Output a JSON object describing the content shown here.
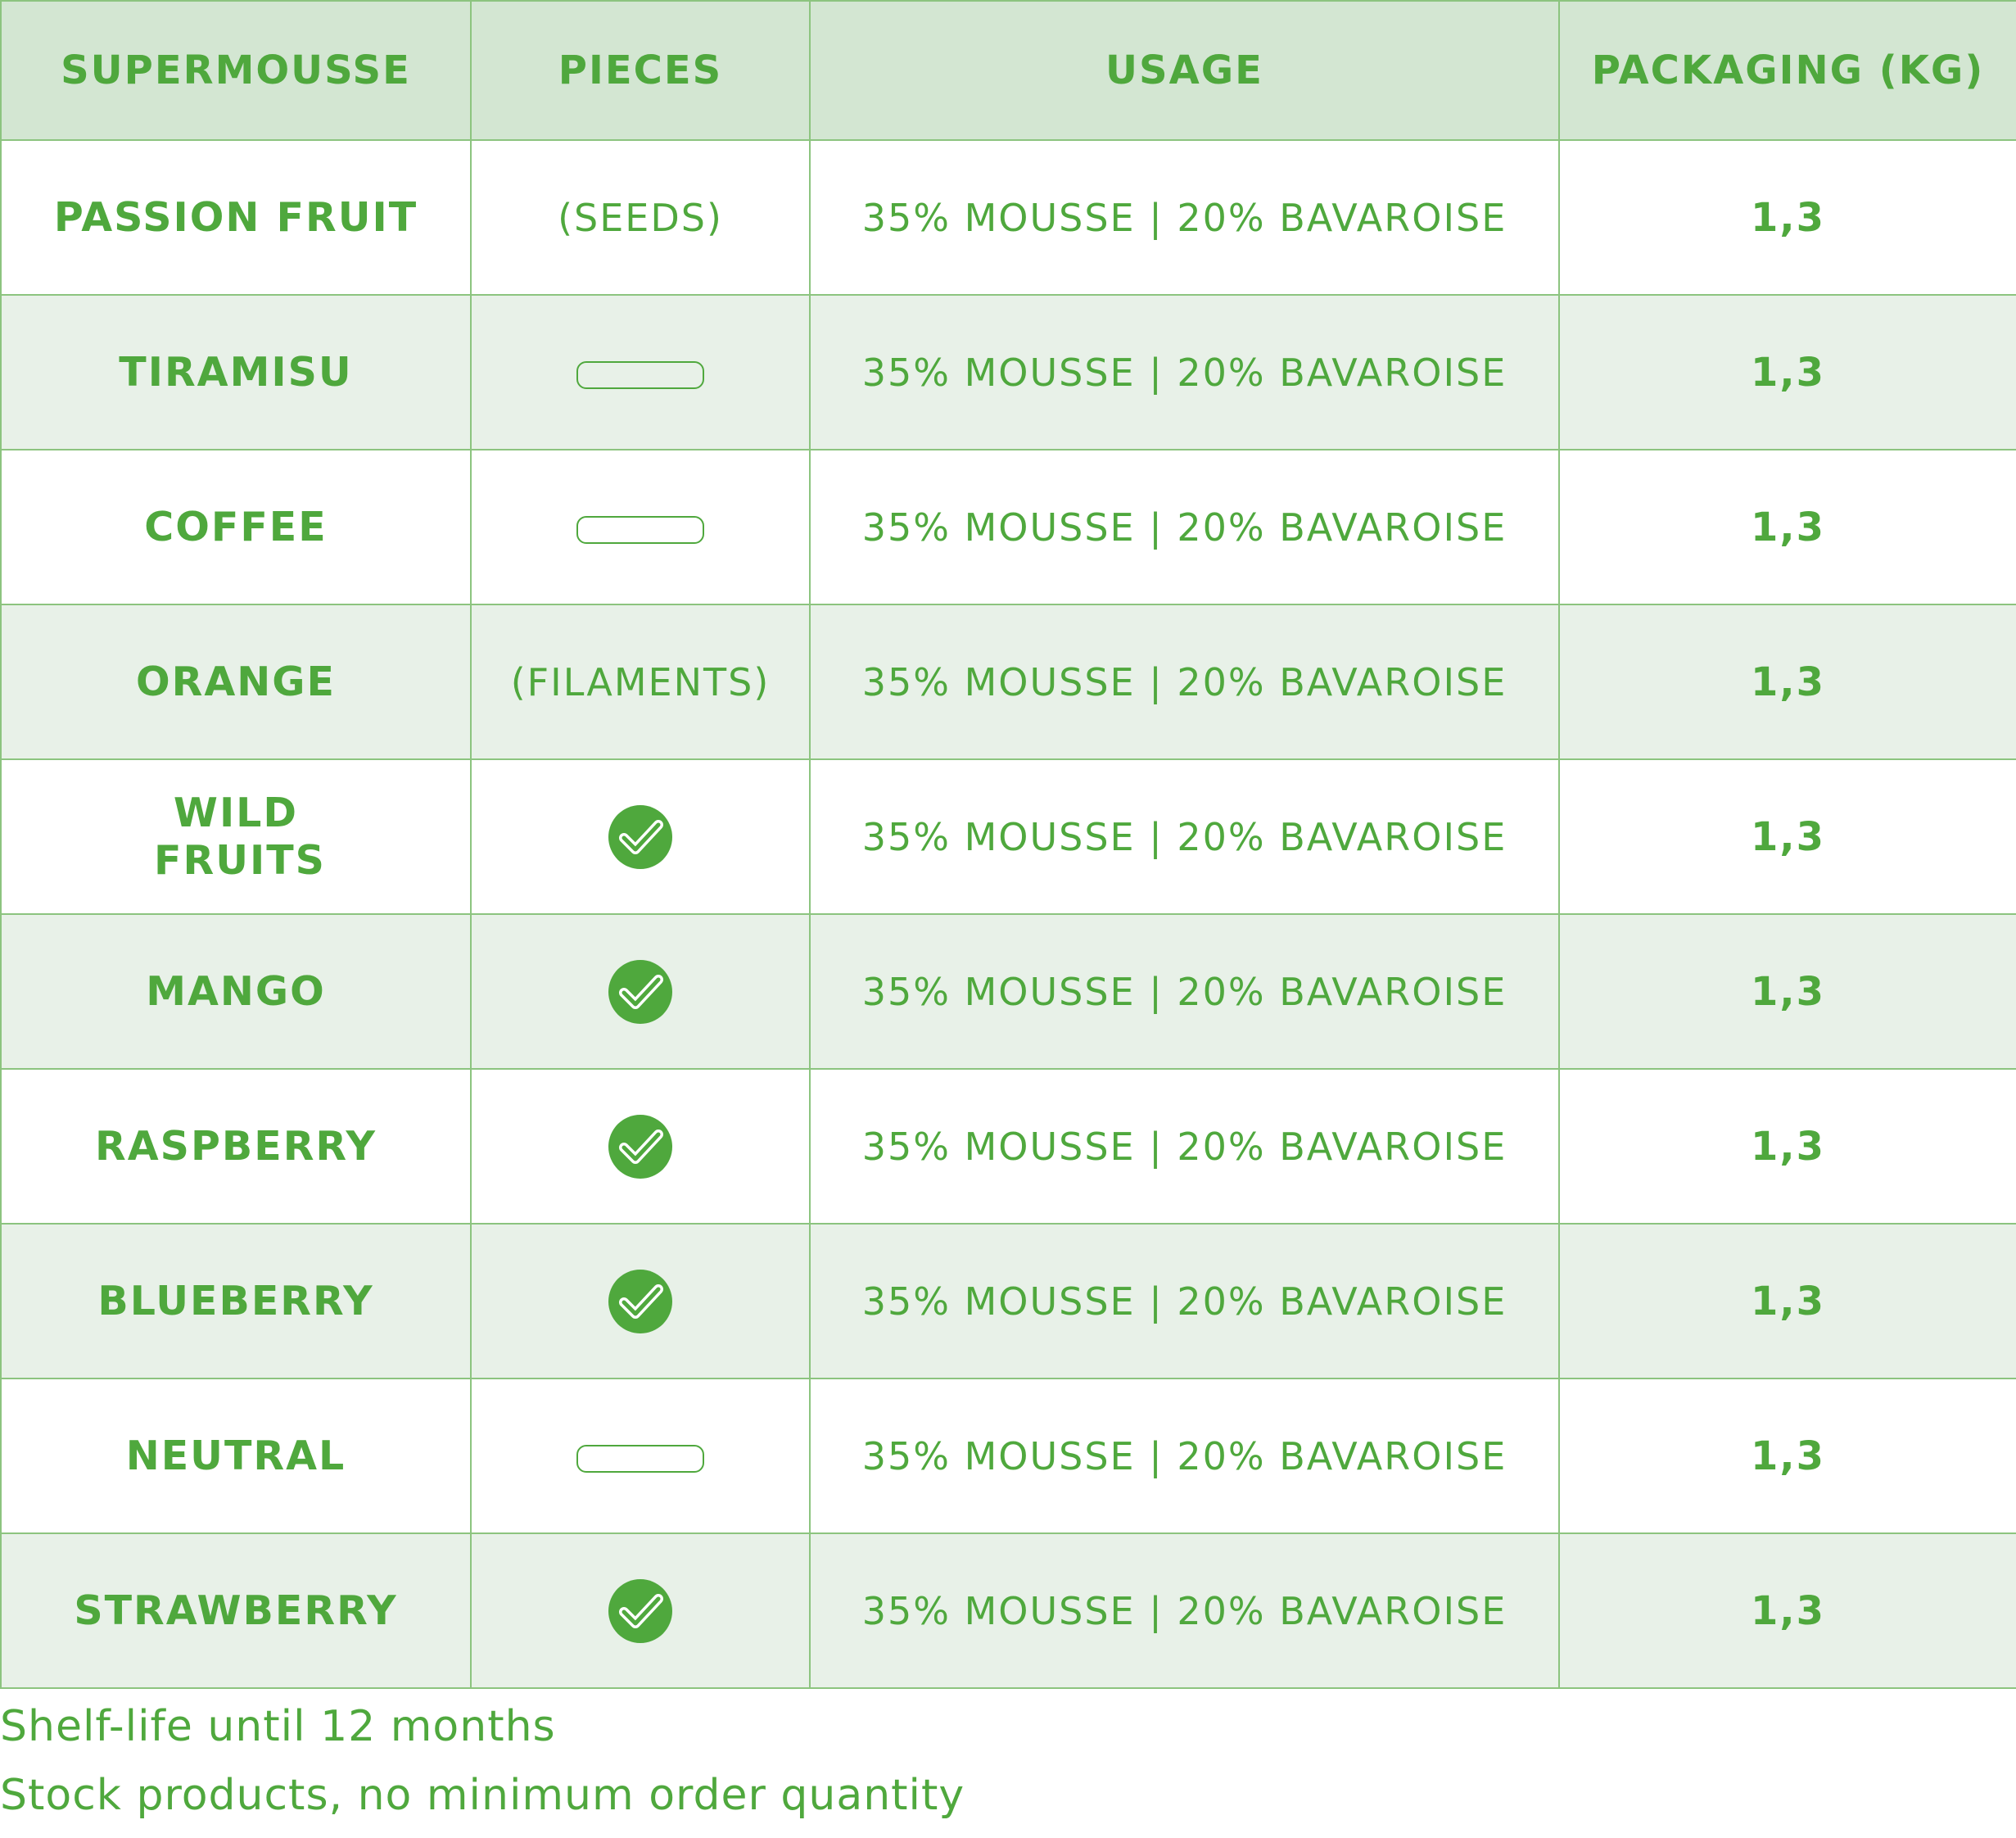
{
  "table": {
    "headers": {
      "name": "SUPERMOUSSE",
      "pieces": "PIECES",
      "usage": "USAGE",
      "packaging": "PACKAGING (KG)"
    },
    "rows": [
      {
        "name": "PASSION FRUIT",
        "pieces_type": "text",
        "pieces": "(SEEDS)",
        "usage": "35% MOUSSE | 20% BAVAROISE",
        "packaging": "1,3"
      },
      {
        "name": "TIRAMISU",
        "pieces_type": "empty",
        "pieces": "",
        "usage": "35% MOUSSE | 20% BAVAROISE",
        "packaging": "1,3"
      },
      {
        "name": "COFFEE",
        "pieces_type": "empty",
        "pieces": "",
        "usage": "35% MOUSSE | 20% BAVAROISE",
        "packaging": "1,3"
      },
      {
        "name": "ORANGE",
        "pieces_type": "text",
        "pieces": "(FILAMENTS)",
        "usage": "35% MOUSSE | 20% BAVAROISE",
        "packaging": "1,3"
      },
      {
        "name": "WILD FRUITS",
        "pieces_type": "check",
        "pieces": "",
        "usage": "35% MOUSSE | 20% BAVAROISE",
        "packaging": "1,3"
      },
      {
        "name": "MANGO",
        "pieces_type": "check",
        "pieces": "",
        "usage": "35% MOUSSE | 20% BAVAROISE",
        "packaging": "1,3"
      },
      {
        "name": "RASPBERRY",
        "pieces_type": "check",
        "pieces": "",
        "usage": "35% MOUSSE | 20% BAVAROISE",
        "packaging": "1,3"
      },
      {
        "name": "BLUEBERRY",
        "pieces_type": "check",
        "pieces": "",
        "usage": "35% MOUSSE | 20% BAVAROISE",
        "packaging": "1,3"
      },
      {
        "name": "NEUTRAL",
        "pieces_type": "empty",
        "pieces": "",
        "usage": "35% MOUSSE | 20% BAVAROISE",
        "packaging": "1,3"
      },
      {
        "name": "STRAWBERRY",
        "pieces_type": "check",
        "pieces": "",
        "usage": "35% MOUSSE | 20% BAVAROISE",
        "packaging": "1,3"
      }
    ]
  },
  "footnotes": {
    "shelf_life": "Shelf-life until 12 months",
    "stock": "Stock products, no minimum order quantity"
  },
  "colors": {
    "accent": "#4fa83d",
    "header_bg": "#d3e6d2",
    "stripe_bg": "#e8f1e8",
    "border": "#8cc47f"
  },
  "icons": {
    "check": "check-circle-icon",
    "empty": "empty-pill-icon"
  }
}
